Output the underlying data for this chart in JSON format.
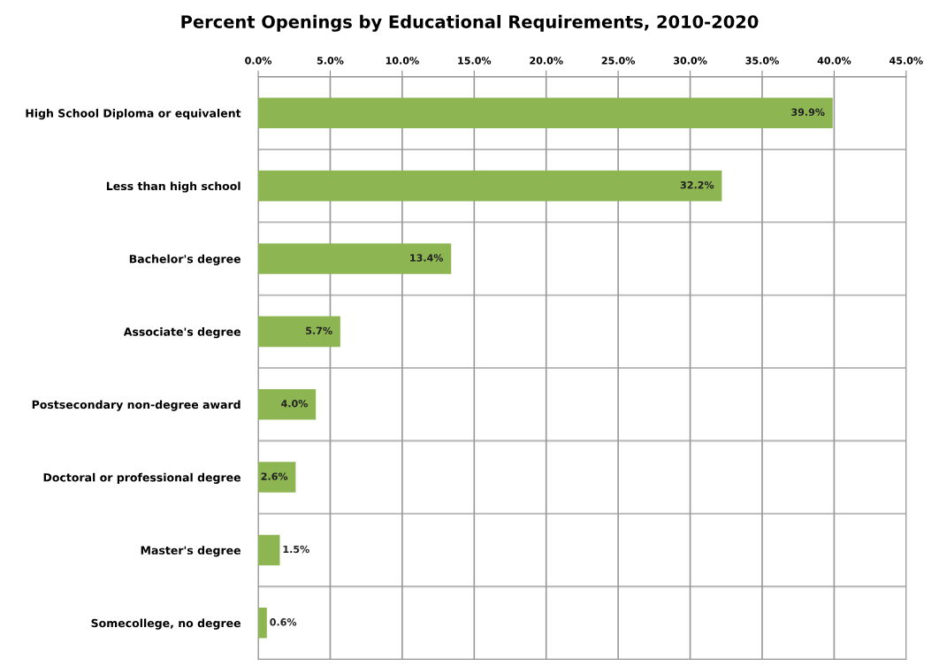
{
  "chart_data": {
    "type": "bar",
    "orientation": "horizontal",
    "title": "Percent Openings by Educational Requirements, 2010-2020",
    "categories": [
      "High School Diploma or equivalent",
      "Less than high school",
      "Bachelor's degree",
      "Associate's degree",
      "Postsecondary non-degree award",
      "Doctoral or professional degree",
      "Master's degree",
      "Somecollege, no degree"
    ],
    "values": [
      39.9,
      32.2,
      13.4,
      5.7,
      4.0,
      2.6,
      1.5,
      0.6
    ],
    "value_labels": [
      "39.9%",
      "32.2%",
      "13.4%",
      "5.7%",
      "4.0%",
      "2.6%",
      "1.5%",
      "0.6%"
    ],
    "color": "#8db552",
    "xlim": [
      0,
      45
    ],
    "xticks": [
      {
        "value": 0,
        "label": "0.0%"
      },
      {
        "value": 5,
        "label": "5.0%"
      },
      {
        "value": 10,
        "label": "10.0%"
      },
      {
        "value": 15,
        "label": "15.0%"
      },
      {
        "value": 20,
        "label": "20.0%"
      },
      {
        "value": 25,
        "label": "25.0%"
      },
      {
        "value": 30,
        "label": "30.0%"
      },
      {
        "value": 35,
        "label": "35.0%"
      },
      {
        "value": 40,
        "label": "40.0%"
      },
      {
        "value": 45,
        "label": "45.0%"
      }
    ],
    "grid": true
  }
}
